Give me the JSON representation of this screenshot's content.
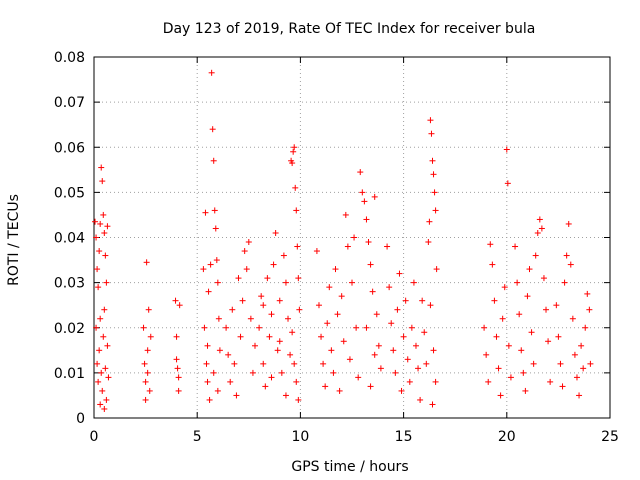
{
  "chart_data": {
    "type": "scatter",
    "title": "Day 123 of 2019, Rate Of TEC Index for receiver bula",
    "xlabel": "GPS time / hours",
    "ylabel": "ROTI / TECUs",
    "xlim": [
      0,
      25
    ],
    "ylim": [
      0,
      0.08
    ],
    "x_ticks": [
      "0",
      "5",
      "10",
      "15",
      "20",
      "25"
    ],
    "y_ticks": [
      "0",
      "0.01",
      "0.02",
      "0.03",
      "0.04",
      "0.05",
      "0.06",
      "0.07",
      "0.08"
    ],
    "grid": true,
    "marker": "+",
    "color": "#ff0000",
    "series": [
      {
        "points": [
          [
            0.05,
            0.0435
          ],
          [
            0.1,
            0.04
          ],
          [
            0.15,
            0.033
          ],
          [
            0.2,
            0.029
          ],
          [
            0.25,
            0.037
          ],
          [
            0.3,
            0.043
          ],
          [
            0.35,
            0.0555
          ],
          [
            0.4,
            0.0525
          ],
          [
            0.45,
            0.045
          ],
          [
            0.5,
            0.041
          ],
          [
            0.55,
            0.036
          ],
          [
            0.6,
            0.03
          ],
          [
            0.65,
            0.0425
          ],
          [
            0.1,
            0.02
          ],
          [
            0.15,
            0.012
          ],
          [
            0.2,
            0.008
          ],
          [
            0.25,
            0.015
          ],
          [
            0.3,
            0.022
          ],
          [
            0.35,
            0.01
          ],
          [
            0.4,
            0.006
          ],
          [
            0.45,
            0.018
          ],
          [
            0.5,
            0.024
          ],
          [
            0.55,
            0.011
          ],
          [
            0.6,
            0.004
          ],
          [
            0.65,
            0.016
          ],
          [
            0.7,
            0.009
          ],
          [
            0.3,
            0.003
          ],
          [
            0.5,
            0.002
          ],
          [
            2.4,
            0.02
          ],
          [
            2.45,
            0.012
          ],
          [
            2.5,
            0.008
          ],
          [
            2.55,
            0.0345
          ],
          [
            2.6,
            0.015
          ],
          [
            2.65,
            0.024
          ],
          [
            2.7,
            0.006
          ],
          [
            2.75,
            0.018
          ],
          [
            2.5,
            0.004
          ],
          [
            2.6,
            0.01
          ],
          [
            3.95,
            0.026
          ],
          [
            4.0,
            0.018
          ],
          [
            4.05,
            0.011
          ],
          [
            4.1,
            0.006
          ],
          [
            4.15,
            0.025
          ],
          [
            4.0,
            0.013
          ],
          [
            4.1,
            0.009
          ],
          [
            5.3,
            0.033
          ],
          [
            5.35,
            0.02
          ],
          [
            5.4,
            0.0455
          ],
          [
            5.45,
            0.012
          ],
          [
            5.5,
            0.008
          ],
          [
            5.55,
            0.028
          ],
          [
            5.6,
            0.004
          ],
          [
            5.65,
            0.034
          ],
          [
            5.7,
            0.0765
          ],
          [
            5.75,
            0.064
          ],
          [
            5.8,
            0.057
          ],
          [
            5.85,
            0.046
          ],
          [
            5.9,
            0.042
          ],
          [
            5.95,
            0.035
          ],
          [
            6.0,
            0.03
          ],
          [
            6.05,
            0.022
          ],
          [
            6.1,
            0.015
          ],
          [
            5.5,
            0.016
          ],
          [
            5.8,
            0.01
          ],
          [
            6.0,
            0.006
          ],
          [
            6.4,
            0.02
          ],
          [
            6.5,
            0.014
          ],
          [
            6.6,
            0.008
          ],
          [
            6.7,
            0.024
          ],
          [
            6.8,
            0.012
          ],
          [
            6.9,
            0.005
          ],
          [
            7.0,
            0.031
          ],
          [
            7.1,
            0.018
          ],
          [
            7.2,
            0.026
          ],
          [
            7.3,
            0.037
          ],
          [
            7.4,
            0.033
          ],
          [
            7.5,
            0.039
          ],
          [
            7.6,
            0.022
          ],
          [
            7.7,
            0.01
          ],
          [
            7.8,
            0.016
          ],
          [
            8.0,
            0.02
          ],
          [
            8.1,
            0.027
          ],
          [
            8.2,
            0.012
          ],
          [
            8.3,
            0.007
          ],
          [
            8.4,
            0.031
          ],
          [
            8.5,
            0.018
          ],
          [
            8.6,
            0.023
          ],
          [
            8.7,
            0.034
          ],
          [
            8.8,
            0.041
          ],
          [
            8.9,
            0.015
          ],
          [
            9.0,
            0.026
          ],
          [
            9.1,
            0.01
          ],
          [
            9.2,
            0.036
          ],
          [
            9.3,
            0.03
          ],
          [
            9.4,
            0.022
          ],
          [
            9.5,
            0.014
          ],
          [
            8.2,
            0.025
          ],
          [
            8.6,
            0.009
          ],
          [
            9.0,
            0.017
          ],
          [
            9.3,
            0.005
          ],
          [
            9.55,
            0.057
          ],
          [
            9.6,
            0.0565
          ],
          [
            9.65,
            0.059
          ],
          [
            9.7,
            0.06
          ],
          [
            9.75,
            0.051
          ],
          [
            9.8,
            0.046
          ],
          [
            9.85,
            0.038
          ],
          [
            9.9,
            0.031
          ],
          [
            9.95,
            0.024
          ],
          [
            9.6,
            0.019
          ],
          [
            9.7,
            0.012
          ],
          [
            9.8,
            0.008
          ],
          [
            9.9,
            0.004
          ],
          [
            10.8,
            0.037
          ],
          [
            10.9,
            0.025
          ],
          [
            11.0,
            0.018
          ],
          [
            11.1,
            0.012
          ],
          [
            11.2,
            0.007
          ],
          [
            11.3,
            0.021
          ],
          [
            11.4,
            0.029
          ],
          [
            11.5,
            0.015
          ],
          [
            11.6,
            0.01
          ],
          [
            11.7,
            0.033
          ],
          [
            11.8,
            0.023
          ],
          [
            11.9,
            0.006
          ],
          [
            12.0,
            0.027
          ],
          [
            12.1,
            0.017
          ],
          [
            12.2,
            0.045
          ],
          [
            12.3,
            0.038
          ],
          [
            12.4,
            0.013
          ],
          [
            12.5,
            0.03
          ],
          [
            12.6,
            0.04
          ],
          [
            12.7,
            0.02
          ],
          [
            12.8,
            0.009
          ],
          [
            12.9,
            0.0545
          ],
          [
            13.0,
            0.05
          ],
          [
            13.1,
            0.048
          ],
          [
            13.2,
            0.044
          ],
          [
            13.3,
            0.039
          ],
          [
            13.4,
            0.034
          ],
          [
            13.5,
            0.028
          ],
          [
            13.6,
            0.049
          ],
          [
            13.7,
            0.023
          ],
          [
            13.8,
            0.016
          ],
          [
            13.9,
            0.011
          ],
          [
            13.2,
            0.02
          ],
          [
            13.4,
            0.007
          ],
          [
            13.6,
            0.014
          ],
          [
            14.2,
            0.038
          ],
          [
            14.3,
            0.029
          ],
          [
            14.4,
            0.021
          ],
          [
            14.5,
            0.015
          ],
          [
            14.6,
            0.01
          ],
          [
            14.7,
            0.024
          ],
          [
            14.8,
            0.032
          ],
          [
            14.9,
            0.006
          ],
          [
            15.0,
            0.018
          ],
          [
            15.1,
            0.026
          ],
          [
            15.2,
            0.013
          ],
          [
            15.3,
            0.008
          ],
          [
            15.4,
            0.02
          ],
          [
            15.5,
            0.03
          ],
          [
            15.6,
            0.016
          ],
          [
            15.7,
            0.011
          ],
          [
            15.8,
            0.004
          ],
          [
            15.9,
            0.026
          ],
          [
            16.0,
            0.019
          ],
          [
            16.1,
            0.012
          ],
          [
            16.2,
            0.039
          ],
          [
            16.25,
            0.0435
          ],
          [
            16.3,
            0.066
          ],
          [
            16.35,
            0.063
          ],
          [
            16.4,
            0.057
          ],
          [
            16.45,
            0.054
          ],
          [
            16.5,
            0.05
          ],
          [
            16.55,
            0.046
          ],
          [
            16.6,
            0.033
          ],
          [
            16.3,
            0.025
          ],
          [
            16.45,
            0.015
          ],
          [
            16.55,
            0.008
          ],
          [
            16.4,
            0.003
          ],
          [
            18.9,
            0.02
          ],
          [
            19.0,
            0.014
          ],
          [
            19.1,
            0.008
          ],
          [
            19.2,
            0.0385
          ],
          [
            19.3,
            0.034
          ],
          [
            19.4,
            0.026
          ],
          [
            19.5,
            0.018
          ],
          [
            19.6,
            0.011
          ],
          [
            19.7,
            0.005
          ],
          [
            19.8,
            0.022
          ],
          [
            19.9,
            0.029
          ],
          [
            20.0,
            0.0595
          ],
          [
            20.05,
            0.052
          ],
          [
            20.1,
            0.016
          ],
          [
            20.2,
            0.009
          ],
          [
            20.4,
            0.038
          ],
          [
            20.5,
            0.03
          ],
          [
            20.6,
            0.023
          ],
          [
            20.7,
            0.015
          ],
          [
            20.8,
            0.01
          ],
          [
            20.9,
            0.006
          ],
          [
            21.0,
            0.027
          ],
          [
            21.1,
            0.033
          ],
          [
            21.2,
            0.019
          ],
          [
            21.3,
            0.012
          ],
          [
            21.4,
            0.036
          ],
          [
            21.5,
            0.041
          ],
          [
            21.6,
            0.044
          ],
          [
            21.7,
            0.042
          ],
          [
            21.8,
            0.031
          ],
          [
            21.9,
            0.024
          ],
          [
            22.0,
            0.017
          ],
          [
            22.1,
            0.008
          ],
          [
            22.4,
            0.025
          ],
          [
            22.5,
            0.018
          ],
          [
            22.6,
            0.012
          ],
          [
            22.7,
            0.007
          ],
          [
            22.8,
            0.03
          ],
          [
            22.9,
            0.036
          ],
          [
            23.0,
            0.043
          ],
          [
            23.1,
            0.034
          ],
          [
            23.2,
            0.022
          ],
          [
            23.3,
            0.014
          ],
          [
            23.4,
            0.009
          ],
          [
            23.5,
            0.005
          ],
          [
            23.6,
            0.016
          ],
          [
            23.7,
            0.011
          ],
          [
            23.8,
            0.02
          ],
          [
            23.9,
            0.0275
          ],
          [
            24.0,
            0.024
          ],
          [
            24.05,
            0.012
          ]
        ]
      }
    ]
  }
}
